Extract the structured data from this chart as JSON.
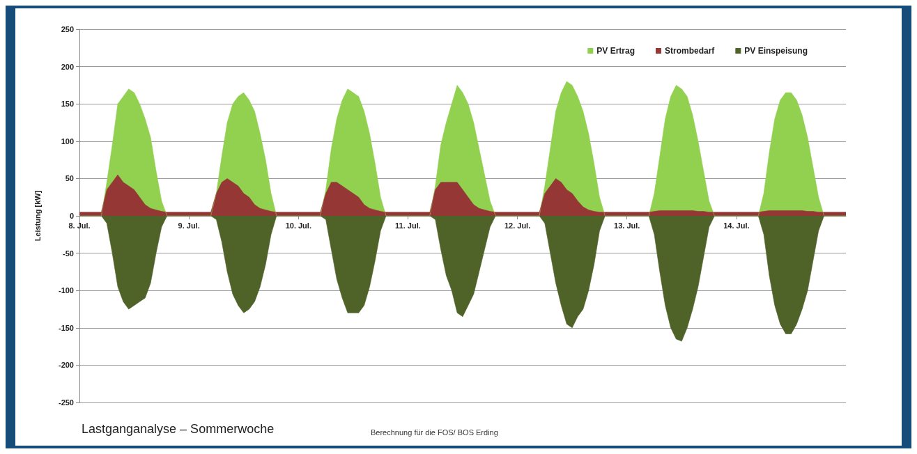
{
  "chart_data": {
    "type": "area",
    "title": "Lastganganalyse – Sommerwoche",
    "ylabel": "Leistung [kW]",
    "annotations": [
      "Berechnung für die FOS/ BOS Erding"
    ],
    "x": [
      "--07-08T00:00",
      "--07-08T04:48",
      "--07-08T06:00",
      "--07-08T07:12",
      "--07-08T08:24",
      "--07-08T09:36",
      "--07-08T10:48",
      "--07-08T12:00",
      "--07-08T13:12",
      "--07-08T14:24",
      "--07-08T15:36",
      "--07-08T16:48",
      "--07-08T18:00",
      "--07-08T19:12",
      "--07-09T00:00",
      "--07-09T04:48",
      "--07-09T06:00",
      "--07-09T07:12",
      "--07-09T08:24",
      "--07-09T09:36",
      "--07-09T10:48",
      "--07-09T12:00",
      "--07-09T13:12",
      "--07-09T14:24",
      "--07-09T15:36",
      "--07-09T16:48",
      "--07-09T18:00",
      "--07-09T19:12",
      "--07-10T00:00",
      "--07-10T04:48",
      "--07-10T06:00",
      "--07-10T07:12",
      "--07-10T08:24",
      "--07-10T09:36",
      "--07-10T10:48",
      "--07-10T12:00",
      "--07-10T13:12",
      "--07-10T14:24",
      "--07-10T15:36",
      "--07-10T16:48",
      "--07-10T18:00",
      "--07-10T19:12",
      "--07-11T00:00",
      "--07-11T04:48",
      "--07-11T06:00",
      "--07-11T07:12",
      "--07-11T08:24",
      "--07-11T09:36",
      "--07-11T10:48",
      "--07-11T12:00",
      "--07-11T13:12",
      "--07-11T14:24",
      "--07-11T15:36",
      "--07-11T16:48",
      "--07-11T18:00",
      "--07-11T19:12",
      "--07-12T00:00",
      "--07-12T04:48",
      "--07-12T06:00",
      "--07-12T07:12",
      "--07-12T08:24",
      "--07-12T09:36",
      "--07-12T10:48",
      "--07-12T12:00",
      "--07-12T13:12",
      "--07-12T14:24",
      "--07-12T15:36",
      "--07-12T16:48",
      "--07-12T18:00",
      "--07-12T19:12",
      "--07-13T00:00",
      "--07-13T04:48",
      "--07-13T06:00",
      "--07-13T07:12",
      "--07-13T08:24",
      "--07-13T09:36",
      "--07-13T10:48",
      "--07-13T12:00",
      "--07-13T13:12",
      "--07-13T14:24",
      "--07-13T15:36",
      "--07-13T16:48",
      "--07-13T18:00",
      "--07-13T19:12",
      "--07-14T00:00",
      "--07-14T04:48",
      "--07-14T06:00",
      "--07-14T07:12",
      "--07-14T08:24",
      "--07-14T09:36",
      "--07-14T10:48",
      "--07-14T12:00",
      "--07-14T13:12",
      "--07-14T14:24",
      "--07-14T15:36",
      "--07-14T16:48",
      "--07-14T18:00",
      "--07-14T19:12",
      "--07-15T00:00"
    ],
    "series": [
      {
        "name": "PV Ertrag",
        "color": "#92d050",
        "values": [
          0,
          0,
          45,
          95,
          150,
          160,
          170,
          165,
          150,
          130,
          105,
          60,
          20,
          0,
          0,
          0,
          30,
          80,
          125,
          150,
          160,
          165,
          155,
          140,
          110,
          75,
          30,
          0,
          0,
          0,
          35,
          90,
          130,
          155,
          170,
          165,
          160,
          140,
          110,
          70,
          25,
          0,
          0,
          0,
          40,
          95,
          125,
          150,
          175,
          165,
          150,
          125,
          90,
          55,
          20,
          0,
          0,
          0,
          40,
          90,
          140,
          165,
          180,
          175,
          160,
          140,
          110,
          70,
          25,
          0,
          0,
          0,
          30,
          80,
          130,
          160,
          175,
          170,
          160,
          135,
          100,
          60,
          20,
          0,
          0,
          0,
          30,
          85,
          130,
          155,
          165,
          165,
          155,
          135,
          105,
          65,
          25,
          0,
          0
        ]
      },
      {
        "name": "Strombedarf",
        "color": "#953735",
        "values": [
          5,
          5,
          35,
          45,
          55,
          45,
          40,
          35,
          25,
          15,
          10,
          8,
          6,
          5,
          5,
          5,
          30,
          45,
          50,
          45,
          40,
          30,
          25,
          15,
          10,
          8,
          6,
          5,
          5,
          5,
          30,
          45,
          45,
          40,
          35,
          30,
          25,
          15,
          10,
          8,
          6,
          5,
          5,
          5,
          35,
          45,
          45,
          45,
          45,
          35,
          25,
          15,
          10,
          8,
          6,
          5,
          5,
          5,
          30,
          40,
          50,
          45,
          35,
          30,
          20,
          12,
          8,
          6,
          5,
          5,
          5,
          5,
          6,
          7,
          7,
          7,
          7,
          7,
          7,
          7,
          6,
          6,
          5,
          5,
          5,
          5,
          6,
          7,
          7,
          7,
          7,
          7,
          7,
          7,
          6,
          6,
          5,
          5,
          5
        ]
      },
      {
        "name": "PV Einspeisung",
        "color": "#4f6228",
        "values": [
          0,
          0,
          -10,
          -50,
          -95,
          -115,
          -125,
          -120,
          -115,
          -110,
          -90,
          -50,
          -15,
          0,
          0,
          0,
          -5,
          -35,
          -75,
          -105,
          -120,
          -130,
          -125,
          -115,
          -95,
          -65,
          -25,
          0,
          0,
          0,
          -5,
          -45,
          -85,
          -110,
          -130,
          -130,
          -130,
          -120,
          -95,
          -60,
          -20,
          0,
          0,
          0,
          -5,
          -45,
          -80,
          -100,
          -130,
          -135,
          -120,
          -105,
          -75,
          -45,
          -15,
          0,
          0,
          0,
          -10,
          -50,
          -90,
          -120,
          -145,
          -150,
          -135,
          -125,
          -100,
          -65,
          -20,
          0,
          0,
          0,
          -25,
          -75,
          -120,
          -150,
          -165,
          -168,
          -150,
          -125,
          -95,
          -55,
          -15,
          0,
          0,
          0,
          -25,
          -80,
          -120,
          -145,
          -158,
          -158,
          -145,
          -125,
          -100,
          -60,
          -20,
          0,
          0
        ]
      }
    ],
    "xlim": [
      "--07-08",
      "--07-15"
    ],
    "xticks": [
      {
        "value": "--07-08",
        "label": "8. Jul."
      },
      {
        "value": "--07-09",
        "label": "9. Jul."
      },
      {
        "value": "--07-10",
        "label": "10. Jul."
      },
      {
        "value": "--07-11",
        "label": "11. Jul."
      },
      {
        "value": "--07-12",
        "label": "12. Jul."
      },
      {
        "value": "--07-13",
        "label": "13. Jul."
      },
      {
        "value": "--07-14",
        "label": "14. Jul."
      }
    ],
    "ylim": [
      -250,
      250
    ],
    "yticks": [
      -250,
      -200,
      -150,
      -100,
      -50,
      0,
      50,
      100,
      150,
      200,
      250
    ],
    "grid": "y",
    "legend": "top right",
    "marker": "none"
  }
}
